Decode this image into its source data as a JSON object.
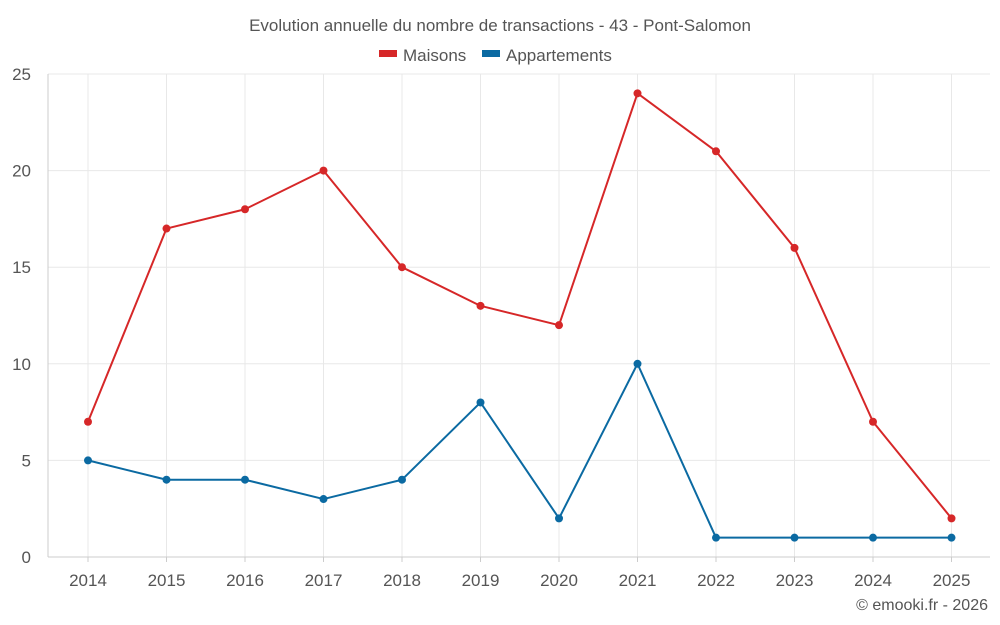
{
  "chart_data": {
    "type": "line",
    "title": "Evolution annuelle du nombre de transactions - 43 - Pont-Salomon",
    "categories": [
      "2014",
      "2015",
      "2016",
      "2017",
      "2018",
      "2019",
      "2020",
      "2021",
      "2022",
      "2023",
      "2024",
      "2025"
    ],
    "series": [
      {
        "name": "Maisons",
        "color": "#d62728",
        "values": [
          7,
          17,
          18,
          20,
          15,
          13,
          12,
          24,
          21,
          16,
          7,
          2
        ]
      },
      {
        "name": "Appartements",
        "color": "#0b6aa2",
        "values": [
          5,
          4,
          4,
          3,
          4,
          8,
          2,
          10,
          1,
          1,
          1,
          1
        ]
      }
    ],
    "ylim": [
      0,
      25
    ],
    "yticks": [
      0,
      5,
      10,
      15,
      20,
      25
    ],
    "xlabel": "",
    "ylabel": "",
    "grid": true,
    "legend_position": "top-center"
  },
  "credit": "© emooki.fr - 2026"
}
